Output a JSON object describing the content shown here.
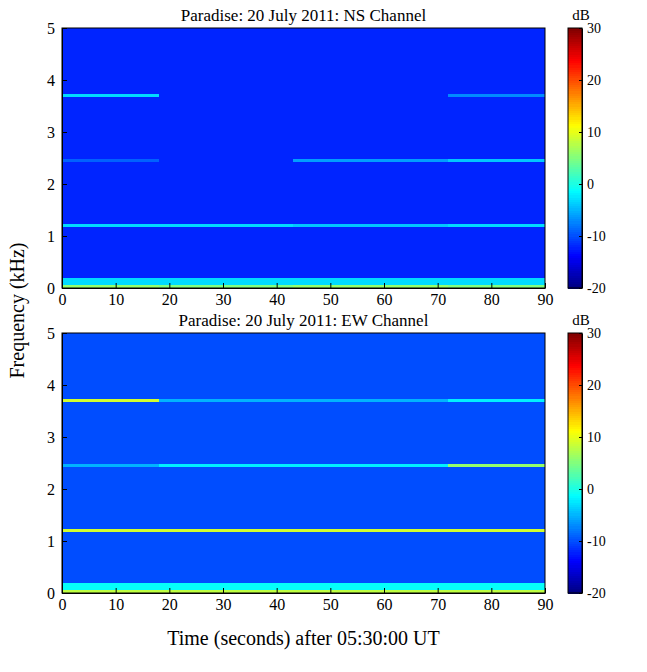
{
  "chart_data": [
    {
      "type": "heatmap",
      "title": "Paradise: 20 July 2011: NS Channel",
      "ylabel": "Frequency (kHz)",
      "x_edges": [
        0,
        18,
        43,
        72,
        90
      ],
      "y_edges": [
        0,
        0.06,
        0.2,
        1.17,
        1.23,
        2.42,
        2.48,
        3.67,
        3.73,
        5
      ],
      "values": [
        [
          6,
          5,
          6,
          5
        ],
        [
          -3,
          -3,
          -3,
          -3
        ],
        [
          -12,
          -12,
          -12,
          -12
        ],
        [
          -3,
          -3,
          -4,
          -3
        ],
        [
          -12,
          -12,
          -12,
          -12
        ],
        [
          -9,
          -12,
          -6,
          -4
        ],
        [
          -12,
          -12,
          -12,
          -12
        ],
        [
          -3,
          -12,
          -12,
          -7
        ],
        [
          -12,
          -12,
          -12,
          -12
        ]
      ],
      "xlim": [
        0,
        90
      ],
      "xticks": [
        0,
        10,
        20,
        30,
        40,
        50,
        60,
        70,
        80,
        90
      ],
      "ylim": [
        0,
        5
      ],
      "yticks": [
        0,
        1,
        2,
        3,
        4,
        5
      ],
      "colorbar": {
        "label": "dB",
        "range": [
          -20,
          30
        ],
        "ticks": [
          -20,
          -10,
          0,
          10,
          20,
          30
        ]
      }
    },
    {
      "type": "heatmap",
      "title": "Paradise: 20 July 2011: EW Channel",
      "xlabel": "Time (seconds) after 05:30:00 UT",
      "x_edges": [
        0,
        18,
        43,
        72,
        90
      ],
      "y_edges": [
        0,
        0.06,
        0.2,
        1.17,
        1.23,
        2.42,
        2.48,
        3.67,
        3.73,
        5
      ],
      "values": [
        [
          8,
          8,
          8,
          8
        ],
        [
          -1,
          -1,
          -1,
          -1
        ],
        [
          -10,
          -10,
          -10,
          -10
        ],
        [
          9,
          9,
          9,
          9
        ],
        [
          -10,
          -10,
          -10,
          -10
        ],
        [
          -5,
          -2,
          -2,
          6
        ],
        [
          -10,
          -10,
          -10,
          -10
        ],
        [
          9,
          -5,
          -5,
          -2
        ],
        [
          -10,
          -10,
          -10,
          -10
        ]
      ],
      "xlim": [
        0,
        90
      ],
      "xticks": [
        0,
        10,
        20,
        30,
        40,
        50,
        60,
        70,
        80,
        90
      ],
      "ylim": [
        0,
        5
      ],
      "yticks": [
        0,
        1,
        2,
        3,
        4,
        5
      ],
      "colorbar": {
        "label": "dB",
        "range": [
          -20,
          30
        ],
        "ticks": [
          -20,
          -10,
          0,
          10,
          20,
          30
        ]
      }
    }
  ]
}
